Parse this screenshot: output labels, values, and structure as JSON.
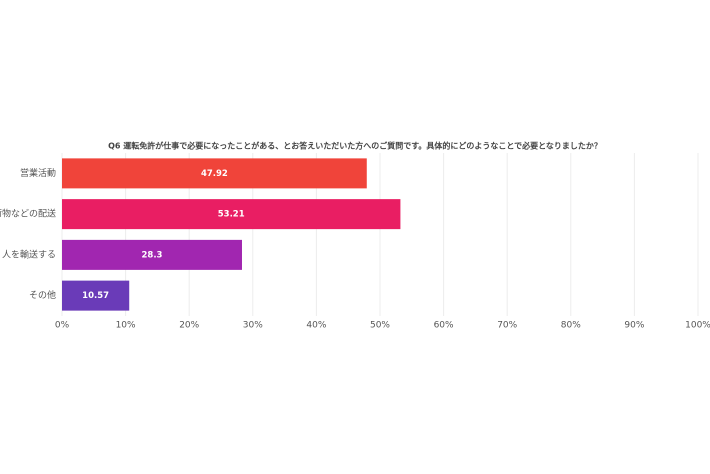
{
  "chart_data": {
    "type": "bar",
    "orientation": "horizontal",
    "title": "Q6 運転免許が仕事で必要になったことがある、とお答えいただいた方へのご質問です。具体的にどのようなことで必要となりましたか？",
    "categories": [
      "営業活動",
      "荷物などの配送",
      "人を輸送する",
      "その他"
    ],
    "values": [
      47.92,
      53.21,
      28.3,
      10.57
    ],
    "colors": [
      "#f0443a",
      "#e91e63",
      "#a126b0",
      "#6a3bb8"
    ],
    "xlim": [
      0,
      100
    ],
    "xticks": [
      {
        "value": 0,
        "label": "0%"
      },
      {
        "value": 10,
        "label": "10%"
      },
      {
        "value": 20,
        "label": "20%"
      },
      {
        "value": 30,
        "label": "30%"
      },
      {
        "value": 40,
        "label": "40%"
      },
      {
        "value": 50,
        "label": "50%"
      },
      {
        "value": 60,
        "label": "60%"
      },
      {
        "value": 70,
        "label": "70%"
      },
      {
        "value": 80,
        "label": "80%"
      },
      {
        "value": 90,
        "label": "90%"
      },
      {
        "value": 100,
        "label": "100%"
      }
    ],
    "grid": true
  }
}
